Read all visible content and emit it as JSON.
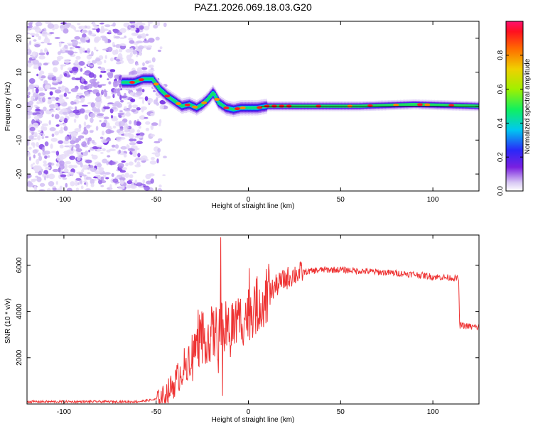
{
  "title": "PAZ1.2026.069.18.03.G20",
  "chart_data": [
    {
      "type": "heatmap",
      "name": "spectrogram",
      "xlabel": "Height of straight line (km)",
      "ylabel": "Frequency (Hz)",
      "xlim": [
        -120,
        125
      ],
      "ylim": [
        -25,
        25
      ],
      "xticks": [
        -100,
        -50,
        0,
        50,
        100
      ],
      "yticks": [
        -20,
        -10,
        0,
        10,
        20
      ],
      "colorbar": {
        "label": "Normalized spectral amplitude",
        "range": [
          0,
          1
        ],
        "ticks": [
          "0.0",
          "0.2",
          "0.4",
          "0.6",
          "0.8"
        ],
        "tick_values": [
          0.0,
          0.2,
          0.4,
          0.6,
          0.8
        ]
      },
      "ridge": {
        "x": [
          -68,
          -62,
          -57,
          -52,
          -48,
          -44,
          -40,
          -36,
          -32,
          -28,
          -25,
          -22,
          -19,
          -16,
          -12,
          -8,
          -4,
          0,
          5,
          10,
          30,
          60,
          90,
          125
        ],
        "freq": [
          7,
          7,
          8,
          8,
          5,
          3,
          1.5,
          0,
          0.5,
          -0.5,
          0.5,
          2,
          4,
          1,
          -0.5,
          -1,
          -0.5,
          -0.5,
          -0.5,
          0,
          0,
          0,
          0.5,
          0
        ]
      }
    },
    {
      "type": "line",
      "name": "snr",
      "xlabel": "Height of straight line (km)",
      "ylabel": "SNR (10 * v/v)",
      "xlim": [
        -120,
        125
      ],
      "ylim": [
        0,
        7300
      ],
      "xticks": [
        -100,
        -50,
        0,
        50,
        100
      ],
      "yticks": [
        2000,
        4000,
        6000
      ],
      "color": "#ee3333",
      "envelope": {
        "x": [
          -120,
          -60,
          -50,
          -45,
          -40,
          -35,
          -30,
          -25,
          -20,
          -15,
          -10,
          -5,
          0,
          5,
          10,
          15,
          20,
          25,
          30,
          40,
          50,
          60,
          70,
          80,
          90,
          100,
          110,
          114,
          114.5,
          120,
          125
        ],
        "y": [
          100,
          100,
          200,
          400,
          900,
          1600,
          2300,
          2800,
          3000,
          3100,
          3300,
          3600,
          3900,
          4300,
          4700,
          5100,
          5400,
          5600,
          5700,
          5800,
          5800,
          5750,
          5700,
          5650,
          5600,
          5500,
          5450,
          5400,
          3400,
          3350,
          3300
        ]
      },
      "spikes": [
        {
          "x": -15,
          "y": 7200
        },
        {
          "x": -14,
          "y": 350
        },
        {
          "x": 11,
          "y": 6050
        }
      ]
    }
  ]
}
